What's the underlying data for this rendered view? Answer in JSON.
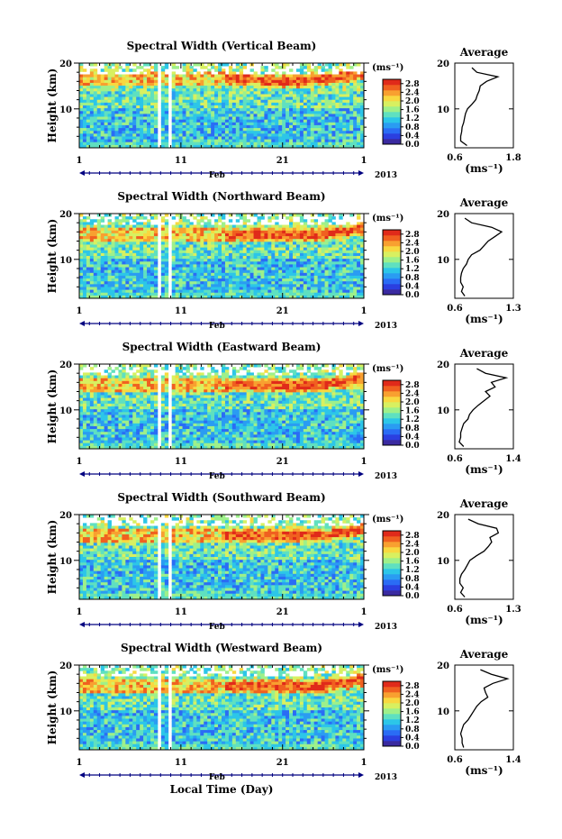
{
  "figure": {
    "xlabel_bottom": "Local Time (Day)",
    "month_label": "Feb",
    "year_label": "2013",
    "cbar_unit": "(ms⁻¹)",
    "avg_title": "Average",
    "avg_xlabel": "(ms⁻¹)",
    "ylabel": "Height (km)"
  },
  "colors": {
    "colormap": [
      "#3a2aa0",
      "#2b3fe0",
      "#2a6cf5",
      "#2a9cf2",
      "#2cc6e8",
      "#5fe0c0",
      "#9ef08a",
      "#d8f060",
      "#f8d840",
      "#f8a030",
      "#f06020",
      "#e02a1a"
    ],
    "axis": "#000000",
    "time_axis": "#000080"
  },
  "chart_data": [
    {
      "type": "heatmap",
      "title": "Spectral Width (Vertical Beam)",
      "x_ticks": [
        "1",
        "11",
        "21",
        "1"
      ],
      "y_ticks": [
        "10",
        "20"
      ],
      "ylim": [
        1.5,
        20
      ],
      "cbar_ticks": [
        "0.0",
        "0.4",
        "0.8",
        "1.2",
        "1.6",
        "2.0",
        "2.4",
        "2.8"
      ],
      "avg_xticks": [
        "0.6",
        "1.8"
      ],
      "avg_xlim": [
        0.6,
        1.8
      ],
      "avg_profile": {
        "height": [
          2,
          3,
          4,
          5,
          6,
          7,
          8,
          9,
          10,
          11,
          12,
          13,
          14,
          15,
          16,
          17,
          18,
          19
        ],
        "value": [
          0.85,
          0.72,
          0.72,
          0.74,
          0.75,
          0.78,
          0.8,
          0.82,
          0.86,
          0.95,
          1.03,
          1.06,
          1.1,
          1.12,
          1.25,
          1.48,
          1.05,
          0.95
        ]
      }
    },
    {
      "type": "heatmap",
      "title": "Spectral Width (Northward Beam)",
      "x_ticks": [
        "1",
        "11",
        "21",
        "1"
      ],
      "y_ticks": [
        "10",
        "20"
      ],
      "ylim": [
        1.5,
        20
      ],
      "cbar_ticks": [
        "0.0",
        "0.4",
        "0.8",
        "1.2",
        "1.6",
        "2.0",
        "2.4",
        "2.8"
      ],
      "avg_xticks": [
        "0.6",
        "1.3"
      ],
      "avg_xlim": [
        0.6,
        1.3
      ],
      "avg_profile": {
        "height": [
          2,
          3,
          4,
          5,
          6,
          7,
          8,
          9,
          10,
          11,
          12,
          13,
          14,
          15,
          16,
          17,
          18,
          19
        ],
        "value": [
          0.72,
          0.68,
          0.7,
          0.67,
          0.67,
          0.68,
          0.7,
          0.74,
          0.76,
          0.8,
          0.9,
          0.95,
          1.0,
          1.08,
          1.16,
          1.04,
          0.8,
          0.72
        ]
      }
    },
    {
      "type": "heatmap",
      "title": "Spectral Width (Eastward Beam)",
      "x_ticks": [
        "1",
        "11",
        "21",
        "1"
      ],
      "y_ticks": [
        "10",
        "20"
      ],
      "ylim": [
        1.5,
        20
      ],
      "cbar_ticks": [
        "0.0",
        "0.4",
        "0.8",
        "1.2",
        "1.6",
        "2.0",
        "2.4",
        "2.8"
      ],
      "avg_xticks": [
        "0.6",
        "1.4"
      ],
      "avg_xlim": [
        0.6,
        1.4
      ],
      "avg_profile": {
        "height": [
          2,
          3,
          4,
          5,
          6,
          7,
          8,
          9,
          10,
          11,
          12,
          13,
          14,
          15,
          16,
          17,
          18,
          19
        ],
        "value": [
          0.72,
          0.66,
          0.68,
          0.68,
          0.7,
          0.72,
          0.78,
          0.8,
          0.85,
          0.92,
          1.0,
          1.08,
          1.02,
          1.15,
          1.1,
          1.3,
          1.02,
          0.9
        ]
      }
    },
    {
      "type": "heatmap",
      "title": "Spectral Width (Southward Beam)",
      "x_ticks": [
        "1",
        "11",
        "21",
        "1"
      ],
      "y_ticks": [
        "10",
        "20"
      ],
      "ylim": [
        1.5,
        20
      ],
      "cbar_ticks": [
        "0.0",
        "0.4",
        "0.8",
        "1.2",
        "1.6",
        "2.0",
        "2.4",
        "2.8"
      ],
      "avg_xticks": [
        "0.6",
        "1.3"
      ],
      "avg_xlim": [
        0.6,
        1.3
      ],
      "avg_profile": {
        "height": [
          2,
          3,
          4,
          5,
          6,
          7,
          8,
          9,
          10,
          11,
          12,
          13,
          14,
          15,
          16,
          17,
          18,
          19
        ],
        "value": [
          0.72,
          0.67,
          0.7,
          0.66,
          0.66,
          0.68,
          0.72,
          0.75,
          0.78,
          0.86,
          0.95,
          1.0,
          1.04,
          1.02,
          1.12,
          1.1,
          0.88,
          0.76
        ]
      }
    },
    {
      "type": "heatmap",
      "title": "Spectral Width (Westward Beam)",
      "x_ticks": [
        "1",
        "11",
        "21",
        "1"
      ],
      "y_ticks": [
        "10",
        "20"
      ],
      "ylim": [
        1.5,
        20
      ],
      "cbar_ticks": [
        "0.0",
        "0.4",
        "0.8",
        "1.2",
        "1.6",
        "2.0",
        "2.4",
        "2.8"
      ],
      "avg_xticks": [
        "0.6",
        "1.4"
      ],
      "avg_xlim": [
        0.6,
        1.4
      ],
      "avg_profile": {
        "height": [
          2,
          3,
          4,
          5,
          6,
          7,
          8,
          9,
          10,
          11,
          12,
          13,
          14,
          15,
          16,
          17,
          18,
          19
        ],
        "value": [
          0.72,
          0.7,
          0.7,
          0.68,
          0.7,
          0.72,
          0.78,
          0.82,
          0.86,
          0.9,
          0.96,
          1.05,
          1.02,
          1.0,
          1.12,
          1.32,
          1.1,
          0.95
        ]
      }
    }
  ]
}
